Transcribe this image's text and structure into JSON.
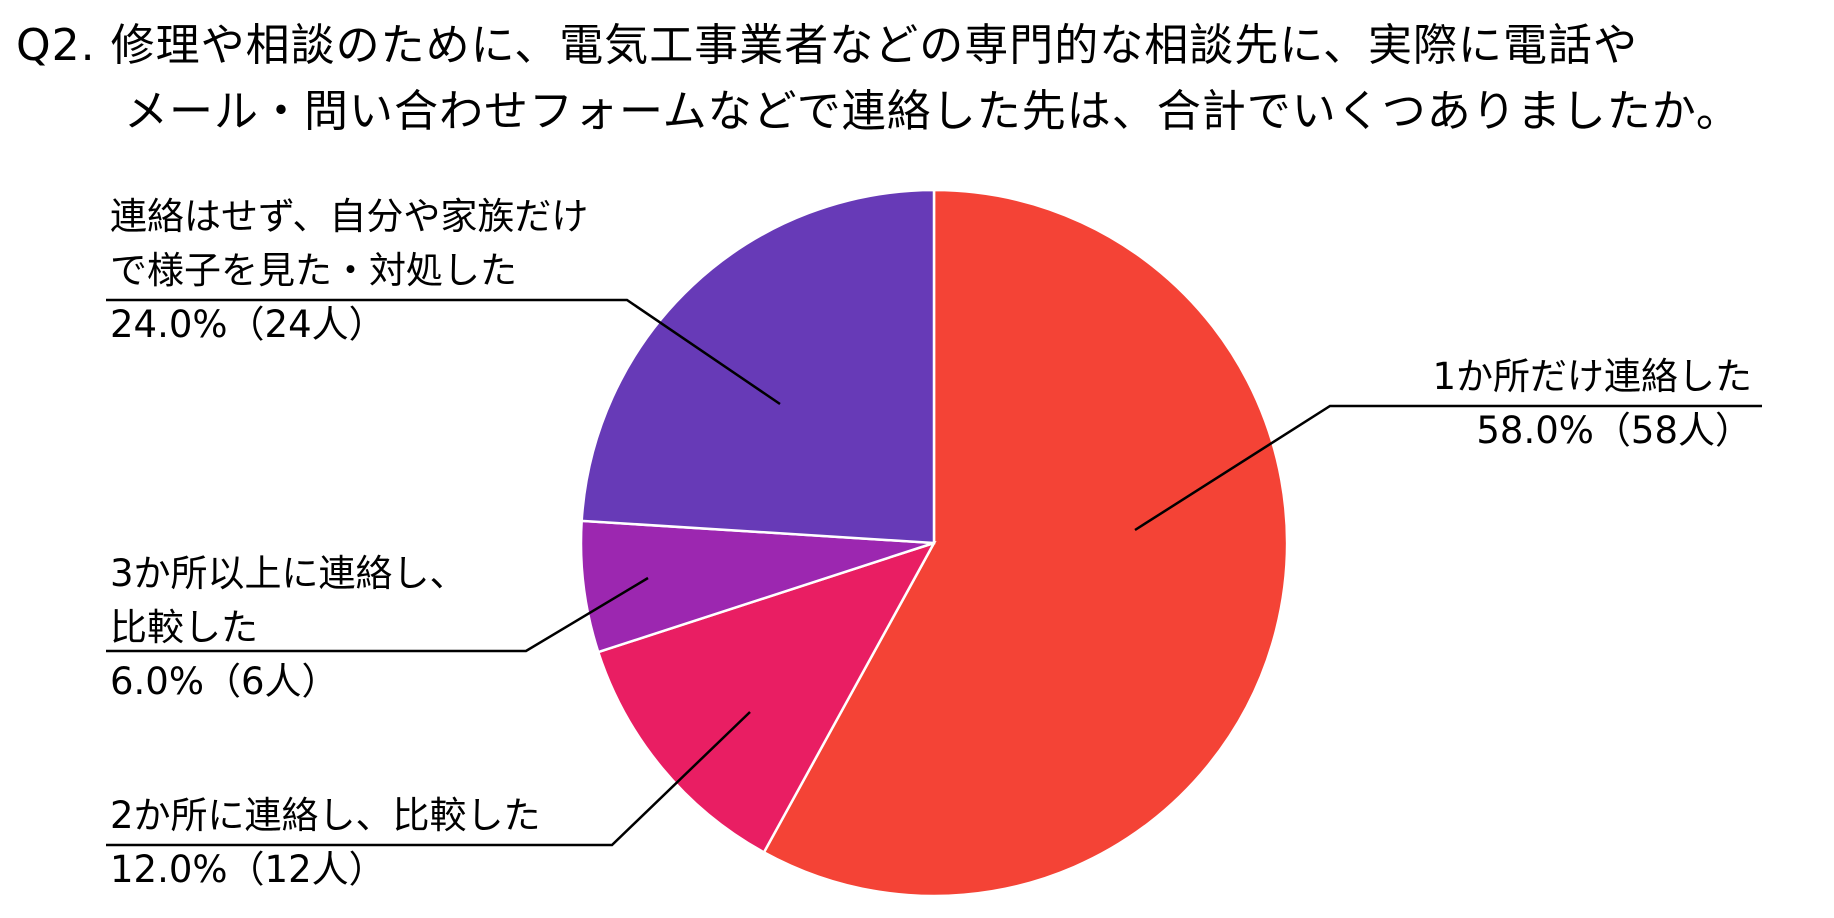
{
  "title": {
    "line1": "Q2. 修理や相談のために、電気工事業者などの専門的な相談先に、実際に電話や",
    "line2": "メール・問い合わせフォームなどで連絡した先は、合計でいくつありましたか。"
  },
  "chart_data": {
    "type": "pie",
    "title": "Q2. 修理や相談のために、電気工事業者などの専門的な相談先に、実際に電話やメール・問い合わせフォームなどで連絡した先は、合計でいくつありましたか。",
    "slices": [
      {
        "label": "1か所だけ連絡した",
        "value": 58.0,
        "count": 58,
        "percent_label": "58.0%（58人）",
        "color": "#f44336"
      },
      {
        "label": "2か所に連絡し、比較した",
        "value": 12.0,
        "count": 12,
        "percent_label": "12.0%（12人）",
        "color": "#e91e63"
      },
      {
        "label": "3か所以上に連絡し、比較した",
        "value": 6.0,
        "count": 6,
        "percent_label": "6.0%（6人）",
        "color": "#9c27b0"
      },
      {
        "label": "連絡はせず、自分や家族だけで様子を見た・対処した",
        "value": 24.0,
        "count": 24,
        "percent_label": "24.0%（24人）",
        "color": "#673ab7"
      }
    ],
    "start_angle": "12 o'clock",
    "direction": "clockwise"
  },
  "labels": {
    "s0_line1": "1か所だけ連絡した",
    "s0_line2": "58.0%（58人）",
    "s1_line1": "2か所に連絡し、比較した",
    "s1_line2": "12.0%（12人）",
    "s2_line1": "3か所以上に連絡し、",
    "s2_line2": "比較した",
    "s2_line3": "6.0%（6人）",
    "s3_line1": "連絡はせず、自分や家族だけ",
    "s3_line2": "で様子を見た・対処した",
    "s3_line3": "24.0%（24人）"
  }
}
